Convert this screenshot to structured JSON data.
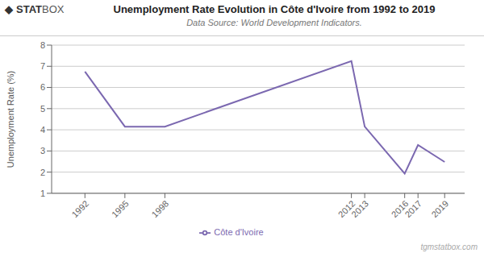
{
  "chart_data": {
    "type": "line",
    "title": "Unemployment Rate Evolution in Côte d'Ivoire from 1992 to 2019",
    "subtitle": "Data Source: World Development Indicators.",
    "ylabel": "Unemployment Rate (%)",
    "x": [
      1992,
      1995,
      1998,
      2012,
      2013,
      2016,
      2017,
      2019
    ],
    "series": [
      {
        "name": "Côte d'Ivoire",
        "color": "#7B68B0",
        "values": [
          6.75,
          4.15,
          4.15,
          7.25,
          4.15,
          1.93,
          3.28,
          2.48
        ]
      }
    ],
    "xlim": [
      1989.5,
      2020.5
    ],
    "xticks": [
      1992,
      1995,
      1998,
      2012,
      2013,
      2016,
      2017,
      2019
    ],
    "ylim": [
      1,
      8
    ],
    "yticks": [
      1,
      2,
      3,
      4,
      5,
      6,
      7,
      8
    ],
    "grid": true,
    "legend": "bottom",
    "annotations": [
      "◆",
      "STAT",
      "BOX",
      "tgmstatbox.com"
    ]
  }
}
